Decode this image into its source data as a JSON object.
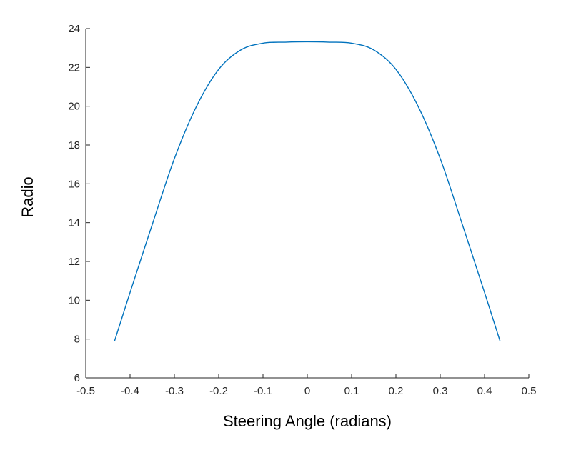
{
  "chart_data": {
    "type": "line",
    "xlabel": "Steering Angle (radians)",
    "ylabel": "Radio",
    "xlim": [
      -0.5,
      0.5
    ],
    "ylim": [
      6,
      24
    ],
    "xticks": [
      "-0.5",
      "-0.4",
      "-0.3",
      "-0.2",
      "-0.1",
      "0",
      "0.1",
      "0.2",
      "0.3",
      "0.4",
      "0.5"
    ],
    "yticks": [
      "6",
      "8",
      "10",
      "12",
      "14",
      "16",
      "18",
      "20",
      "22",
      "24"
    ],
    "grid": false,
    "series": [
      {
        "color": "#0072BD",
        "x": [
          -0.435,
          -0.4,
          -0.35,
          -0.3,
          -0.25,
          -0.2,
          -0.15,
          -0.1,
          -0.05,
          0.0,
          0.05,
          0.1,
          0.15,
          0.2,
          0.25,
          0.3,
          0.35,
          0.4,
          0.435
        ],
        "y": [
          7.9,
          10.4,
          13.9,
          17.3,
          20.0,
          21.9,
          22.9,
          23.25,
          23.3,
          23.32,
          23.3,
          23.25,
          22.9,
          21.9,
          20.0,
          17.3,
          13.9,
          10.4,
          7.9
        ]
      }
    ]
  }
}
